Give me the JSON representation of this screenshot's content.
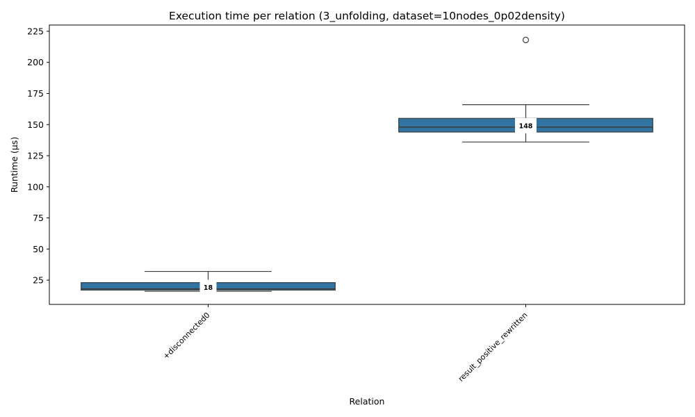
{
  "chart_data": {
    "type": "box",
    "title": "Execution time per relation (3_unfolding, dataset=10nodes_0p02density)",
    "xlabel": "Relation",
    "ylabel": "Runtime (µs)",
    "ylim": [
      5.5,
      230
    ],
    "yticks": [
      25,
      50,
      75,
      100,
      125,
      150,
      175,
      200,
      225
    ],
    "grid": false,
    "box_color": "#3274a1",
    "line_color": "#3d3d3d",
    "categories": [
      "+disconnected0",
      "result_positive_rewritten"
    ],
    "boxes": [
      {
        "category": "+disconnected0",
        "whisker_low": 16,
        "q1": 17,
        "median": 18,
        "q3": 23,
        "whisker_high": 32,
        "outliers": [],
        "median_label": "18"
      },
      {
        "category": "result_positive_rewritten",
        "whisker_low": 136,
        "q1": 144,
        "median": 148,
        "q3": 155,
        "whisker_high": 166,
        "outliers": [
          218
        ],
        "median_label": "148"
      }
    ]
  }
}
